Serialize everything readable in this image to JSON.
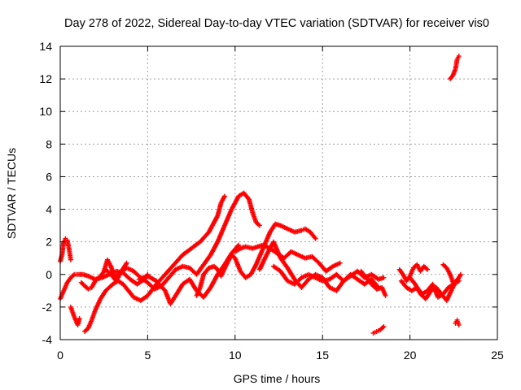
{
  "chart_data": {
    "type": "scatter",
    "title": "Day 278 of 2022, Sidereal Day-to-day VTEC variation (SDTVAR) for receiver vis0",
    "xlabel": "GPS time / hours",
    "ylabel": "SDTVAR / TECUs",
    "xlim": [
      0,
      25
    ],
    "ylim": [
      -4,
      14
    ],
    "xticks": [
      0,
      5,
      10,
      15,
      20,
      25
    ],
    "yticks": [
      -4,
      -2,
      0,
      2,
      4,
      6,
      8,
      10,
      12,
      14
    ],
    "grid": true,
    "marker": "+",
    "color": "#ff0000",
    "series": [
      {
        "name": "s1",
        "x": [
          0,
          0.1,
          0.2,
          0.3,
          0.4,
          0.5,
          0.6
        ],
        "y": [
          0.8,
          1.2,
          2.0,
          2.2,
          2.1,
          1.6,
          0.9
        ]
      },
      {
        "name": "s2",
        "x": [
          0,
          0.2,
          0.4,
          0.6,
          0.8,
          1.0,
          1.3,
          1.6,
          2.0,
          2.4,
          2.8,
          3.2,
          3.6,
          4.0,
          4.4,
          4.8,
          5.0
        ],
        "y": [
          -1.5,
          -1.0,
          -0.5,
          -0.2,
          0.0,
          0.0,
          0.0,
          -0.1,
          -0.3,
          -0.2,
          0.0,
          0.2,
          0.1,
          -0.3,
          -0.6,
          -0.3,
          0.0
        ]
      },
      {
        "name": "s3",
        "x": [
          0.6,
          0.8,
          1.0,
          1.1
        ],
        "y": [
          -2.0,
          -2.6,
          -3.1,
          -2.7
        ]
      },
      {
        "name": "s4",
        "x": [
          1.4,
          1.6,
          1.8,
          2.0,
          2.3,
          2.6,
          3.0,
          3.3,
          3.6,
          3.9,
          4.2,
          4.6,
          5.0,
          5.5,
          6.0,
          6.5,
          7.0,
          7.5,
          8.0,
          8.5,
          9.0,
          9.2,
          9.4
        ],
        "y": [
          -3.5,
          -3.3,
          -2.8,
          -2.2,
          -1.5,
          -1.0,
          -0.6,
          -0.4,
          -0.6,
          -1.0,
          -1.4,
          -1.6,
          -1.3,
          -0.6,
          0.0,
          0.6,
          1.2,
          1.6,
          2.0,
          2.6,
          3.6,
          4.4,
          4.8
        ]
      },
      {
        "name": "s5",
        "x": [
          1.2,
          1.4,
          1.6,
          1.8,
          2.0,
          2.3,
          2.6,
          2.9,
          3.2,
          3.5,
          3.8
        ],
        "y": [
          -0.5,
          -0.7,
          -0.9,
          -0.8,
          -0.4,
          -0.1,
          0.3,
          0.0,
          -0.4,
          0.2,
          0.7
        ]
      },
      {
        "name": "s6",
        "x": [
          2.5,
          2.7,
          2.9,
          3.1,
          3.4,
          3.8,
          4.2,
          4.6,
          5.0,
          5.4,
          5.8,
          6.2,
          6.6,
          7.0,
          7.4,
          7.8,
          8.2,
          8.6,
          9.0,
          9.4,
          9.8,
          10.2,
          10.5,
          10.8,
          11.0,
          11.2,
          11.4
        ],
        "y": [
          0.2,
          0.9,
          0.5,
          -0.2,
          0.1,
          0.4,
          0.2,
          -0.2,
          -0.5,
          -0.9,
          -0.7,
          -0.2,
          0.3,
          0.5,
          0.4,
          0.0,
          0.6,
          1.2,
          2.0,
          3.0,
          4.0,
          4.8,
          5.0,
          4.6,
          3.8,
          3.2,
          3.0
        ]
      },
      {
        "name": "s7",
        "x": [
          4.5,
          5.0,
          5.5,
          6.0,
          6.3,
          6.6,
          7.0,
          7.4,
          7.8,
          8.2,
          8.6,
          9.0,
          9.4,
          9.8,
          10.2
        ],
        "y": [
          -0.3,
          -0.1,
          -0.4,
          -1.0,
          -1.8,
          -1.3,
          -0.6,
          -0.3,
          -1.0,
          -1.4,
          -0.8,
          0.0,
          0.6,
          1.3,
          1.8
        ]
      },
      {
        "name": "s8",
        "x": [
          7.8,
          8.0,
          8.2,
          8.5,
          8.8,
          9.0,
          9.2,
          9.5,
          9.8,
          10.0,
          10.3,
          10.6,
          10.9,
          11.2,
          11.6,
          12.0,
          12.3,
          12.6,
          13.0,
          13.4,
          13.8,
          14.0,
          14.3,
          14.6
        ],
        "y": [
          -1.3,
          -0.8,
          0.0,
          0.4,
          0.5,
          0.3,
          -0.1,
          0.6,
          1.2,
          1.0,
          0.2,
          -0.2,
          0.0,
          0.6,
          1.6,
          2.6,
          3.1,
          3.0,
          2.8,
          2.6,
          2.7,
          2.8,
          2.6,
          2.2
        ]
      },
      {
        "name": "s9",
        "x": [
          10.0,
          10.3,
          10.6,
          11.0,
          11.3,
          11.6,
          12.0,
          12.4,
          12.8,
          13.2,
          13.6,
          14.0,
          14.4,
          14.8,
          15.2,
          15.6,
          16.0
        ],
        "y": [
          1.4,
          1.6,
          1.7,
          1.6,
          1.7,
          1.8,
          1.6,
          1.3,
          1.0,
          1.4,
          1.2,
          1.0,
          1.1,
          0.7,
          0.2,
          0.5,
          0.7
        ]
      },
      {
        "name": "s10",
        "x": [
          11.4,
          11.8,
          12.2,
          12.6,
          13.0,
          13.4,
          13.8,
          14.2,
          14.6,
          15.0,
          15.4,
          15.8,
          16.2,
          16.6,
          17.0,
          17.4,
          17.8,
          18.2
        ],
        "y": [
          0.3,
          1.2,
          2.0,
          1.0,
          0.4,
          -0.3,
          -0.8,
          -0.3,
          0.0,
          -0.2,
          -0.8,
          -1.0,
          -0.4,
          0.0,
          -0.3,
          -0.6,
          -0.3,
          -0.8
        ]
      },
      {
        "name": "s11",
        "x": [
          12.2,
          12.6,
          13.0,
          13.4,
          13.8,
          14.2,
          14.6,
          15.0,
          15.4,
          15.8,
          16.2,
          16.6,
          17.0,
          17.4,
          17.8,
          18.2,
          18.5
        ],
        "y": [
          0.5,
          0.2,
          -0.4,
          -0.6,
          -0.2,
          0.0,
          -0.2,
          -0.4,
          -0.3,
          0.0,
          -0.4,
          -0.1,
          0.2,
          -0.2,
          0.0,
          -0.3,
          -0.2
        ]
      },
      {
        "name": "s12",
        "x": [
          17.2,
          17.5,
          17.8,
          18.1,
          18.4,
          18.6
        ],
        "y": [
          0.2,
          -0.2,
          -0.6,
          -0.9,
          -0.8,
          -1.3
        ]
      },
      {
        "name": "s13",
        "x": [
          17.9,
          18.1,
          18.3,
          18.5
        ],
        "y": [
          -3.6,
          -3.5,
          -3.4,
          -3.2
        ]
      },
      {
        "name": "s14",
        "x": [
          19.4,
          19.6,
          19.8,
          20.0,
          20.2,
          20.4,
          20.6,
          20.8,
          21.0
        ],
        "y": [
          0.3,
          0.0,
          -0.4,
          -0.1,
          0.4,
          0.6,
          0.2,
          0.5,
          0.3
        ]
      },
      {
        "name": "s15",
        "x": [
          19.5,
          19.8,
          20.1,
          20.4,
          20.7,
          21.0,
          21.3,
          21.6,
          21.9,
          22.2,
          22.5,
          22.8
        ],
        "y": [
          -0.4,
          -0.8,
          -1.0,
          -0.8,
          -1.2,
          -1.0,
          -0.6,
          -1.4,
          -1.2,
          -0.8,
          -0.6,
          -0.4
        ]
      },
      {
        "name": "s16",
        "x": [
          20.0,
          20.3,
          20.6,
          20.9,
          21.2,
          21.5,
          21.8,
          22.1,
          22.4,
          22.7
        ],
        "y": [
          -0.2,
          -0.6,
          -1.2,
          -1.5,
          -1.0,
          -0.8,
          -1.2,
          -1.6,
          -0.9,
          -0.3
        ]
      },
      {
        "name": "s17",
        "x": [
          21.9,
          22.1,
          22.3,
          22.5,
          22.7,
          22.9
        ],
        "y": [
          0.6,
          0.4,
          0.0,
          -0.6,
          -0.4,
          0.0
        ]
      },
      {
        "name": "s18",
        "x": [
          22.3,
          22.45,
          22.6,
          22.7,
          22.8
        ],
        "y": [
          12.0,
          12.2,
          12.6,
          13.2,
          13.4
        ]
      },
      {
        "name": "s19",
        "x": [
          22.6,
          22.7,
          22.8
        ],
        "y": [
          -3.0,
          -2.8,
          -3.1
        ]
      }
    ]
  }
}
